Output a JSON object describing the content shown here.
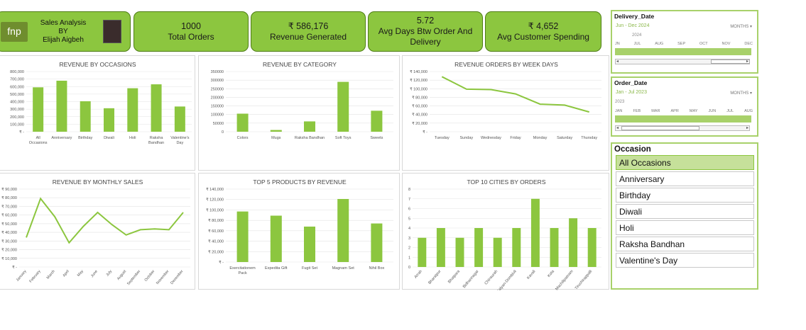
{
  "header": {
    "logo_text": "fnp",
    "title_line1": "Sales Analysis",
    "title_line2": "BY",
    "title_line3": "Elijah Aigbeh"
  },
  "kpis": [
    {
      "value": "1000",
      "label": "Total Orders"
    },
    {
      "value": "₹ 586,176",
      "label": "Revenue Generated"
    },
    {
      "value": "5.72",
      "label": "Avg Days Btw Order And Delivery"
    },
    {
      "value": "₹ 4,652",
      "label": "Avg Customer Spending"
    }
  ],
  "slicers": {
    "delivery": {
      "title": "Delivery_Date",
      "range": "Jun - Dec 2024",
      "unit": "MONTHS",
      "year": "2024",
      "months": [
        "JN",
        "JUL",
        "AUG",
        "SEP",
        "OCT",
        "NOV",
        "DEC"
      ]
    },
    "order": {
      "title": "Order_Date",
      "range": "Jan - Jul 2023",
      "unit": "MONTHS",
      "year": "2023",
      "months": [
        "JAN",
        "FEB",
        "MAR",
        "APR",
        "MAY",
        "JUN",
        "JUL",
        "AUG"
      ]
    }
  },
  "occasion": {
    "title": "Occasion",
    "items": [
      "All Occasions",
      "Anniversary",
      "Birthday",
      "Diwali",
      "Holi",
      "Raksha Bandhan",
      "Valentine's Day"
    ],
    "selected": 0
  },
  "colors": {
    "accent": "#8cc63f",
    "bar": "#8cc63f",
    "line": "#8cc63f",
    "grid": "#e3e3e3"
  },
  "chart_data": [
    {
      "type": "bar",
      "title": "REVENUE BY OCCASIONS",
      "categories": [
        "All Occasions",
        "Anniversary",
        "Birthday",
        "Diwali",
        "Holi",
        "Raksha Bandhan",
        "Valentine's Day"
      ],
      "values": [
        590000,
        678000,
        405000,
        312000,
        578000,
        630000,
        335000
      ],
      "ylim": [
        0,
        800000
      ],
      "yticks": [
        0,
        100000,
        200000,
        300000,
        400000,
        500000,
        600000,
        700000,
        800000
      ],
      "ytick_labels": [
        "₹ -",
        "100,000",
        "200,000",
        "300,000",
        "400,000",
        "500,000",
        "600,000",
        "700,000",
        "800,000"
      ],
      "xtick_labels": [
        [
          "All",
          "Occasions"
        ],
        [
          "Anniversary"
        ],
        [
          "Birthday"
        ],
        [
          "Diwali"
        ],
        [
          "Holi"
        ],
        [
          "Raksha",
          "Bandhan"
        ],
        [
          "Valentine's",
          "Day"
        ]
      ]
    },
    {
      "type": "bar",
      "title": "REVENUE BY CATEGORY",
      "categories": [
        "Colors",
        "Mugs",
        "Raksha Bandhan",
        "Soft Toys",
        "Sweets"
      ],
      "values": [
        105000,
        10000,
        60000,
        290000,
        122000
      ],
      "ylim": [
        0,
        350000
      ],
      "yticks": [
        0,
        50000,
        100000,
        150000,
        200000,
        250000,
        300000,
        350000
      ],
      "ytick_labels": [
        "0",
        "50000",
        "100000",
        "150000",
        "200000",
        "250000",
        "300000",
        "350000"
      ],
      "xtick_labels": [
        [
          "Colors"
        ],
        [
          "Mugs"
        ],
        [
          "Raksha Bandhan"
        ],
        [
          "Soft Toys"
        ],
        [
          "Sweets"
        ]
      ]
    },
    {
      "type": "line",
      "title": "REVENUE ORDERS BY WEEK DAYS",
      "categories": [
        "Tuesday",
        "Sunday",
        "Wednesday",
        "Friday",
        "Monday",
        "Saturday",
        "Thursday"
      ],
      "values": [
        128000,
        99000,
        98000,
        88000,
        64000,
        62000,
        46000
      ],
      "ylim": [
        0,
        140000
      ],
      "yticks": [
        0,
        20000,
        40000,
        60000,
        80000,
        100000,
        120000,
        140000
      ],
      "ytick_labels": [
        "₹ -",
        "₹ 20,000",
        "₹ 40,000",
        "₹ 60,000",
        "₹ 80,000",
        "₹ 100,000",
        "₹ 120,000",
        "₹ 140,000"
      ],
      "xtick_labels": [
        [
          "Tuesday"
        ],
        [
          "Sunday"
        ],
        [
          "Wednesday"
        ],
        [
          "Friday"
        ],
        [
          "Monday"
        ],
        [
          "Saturday"
        ],
        [
          "Thursday"
        ]
      ]
    },
    {
      "type": "line",
      "title": "REVENUE BY MONTHLY SALES",
      "categories": [
        "January",
        "February",
        "March",
        "April",
        "May",
        "June",
        "July",
        "August",
        "September",
        "October",
        "November",
        "December"
      ],
      "values": [
        34000,
        79000,
        58000,
        28000,
        47000,
        63000,
        49000,
        37000,
        43000,
        44000,
        43000,
        63000
      ],
      "ylim": [
        0,
        90000
      ],
      "yticks": [
        0,
        10000,
        20000,
        30000,
        40000,
        50000,
        60000,
        70000,
        80000,
        90000
      ],
      "ytick_labels": [
        "₹ -",
        "₹ 10,000",
        "₹ 20,000",
        "₹ 30,000",
        "₹ 40,000",
        "₹ 50,000",
        "₹ 60,000",
        "₹ 70,000",
        "₹ 80,000",
        "₹ 90,000"
      ],
      "xtick_labels": [
        [
          "January"
        ],
        [
          "February"
        ],
        [
          "March"
        ],
        [
          "April"
        ],
        [
          "May"
        ],
        [
          "June"
        ],
        [
          "July"
        ],
        [
          "August"
        ],
        [
          "September"
        ],
        [
          "October"
        ],
        [
          "November"
        ],
        [
          "December"
        ]
      ]
    },
    {
      "type": "bar",
      "title": "TOP 5 PRODUCTS BY REVENUE",
      "categories": [
        "Exercitationem Pack",
        "Expedita Gift",
        "Fugit Set",
        "Magnam Set",
        "Nihil Box"
      ],
      "values": [
        97000,
        89000,
        68000,
        121000,
        74000
      ],
      "ylim": [
        0,
        140000
      ],
      "yticks": [
        0,
        20000,
        40000,
        60000,
        80000,
        100000,
        120000,
        140000
      ],
      "ytick_labels": [
        "₹ -",
        "₹ 20,000",
        "₹ 40,000",
        "₹ 60,000",
        "₹ 80,000",
        "₹ 100,000",
        "₹ 120,000",
        "₹ 140,000"
      ],
      "xtick_labels": [
        [
          "Exercitationem",
          "Pack"
        ],
        [
          "Expedita Gift"
        ],
        [
          "Fugit Set"
        ],
        [
          "Magnam Set"
        ],
        [
          "Nihil Box"
        ]
      ]
    },
    {
      "type": "bar",
      "title": "TOP 10 CITIES BY ORDERS",
      "categories": [
        "Arrah",
        "Bharatpur",
        "Bhatpara",
        "Bidhannagar",
        "Chinsurah",
        "Kalyan-Dombivli",
        "Kavali",
        "Kota",
        "Machilipatnam",
        "Tiruchirappalli"
      ],
      "values": [
        3,
        4,
        3,
        4,
        3,
        4,
        7,
        4,
        5,
        4
      ],
      "ylim": [
        0,
        8
      ],
      "yticks": [
        0,
        1,
        2,
        3,
        4,
        5,
        6,
        7,
        8
      ],
      "ytick_labels": [
        "0",
        "1",
        "2",
        "3",
        "4",
        "5",
        "6",
        "7",
        "8"
      ],
      "xtick_labels": [
        [
          "Arrah"
        ],
        [
          "Bharatpur"
        ],
        [
          "Bhatpara"
        ],
        [
          "Bidhannagar"
        ],
        [
          "Chinsurah"
        ],
        [
          "Kalyan-Dombivli"
        ],
        [
          "Kavali"
        ],
        [
          "Kota"
        ],
        [
          "Machilipatnam"
        ],
        [
          "Tiruchirappalli"
        ]
      ]
    }
  ]
}
